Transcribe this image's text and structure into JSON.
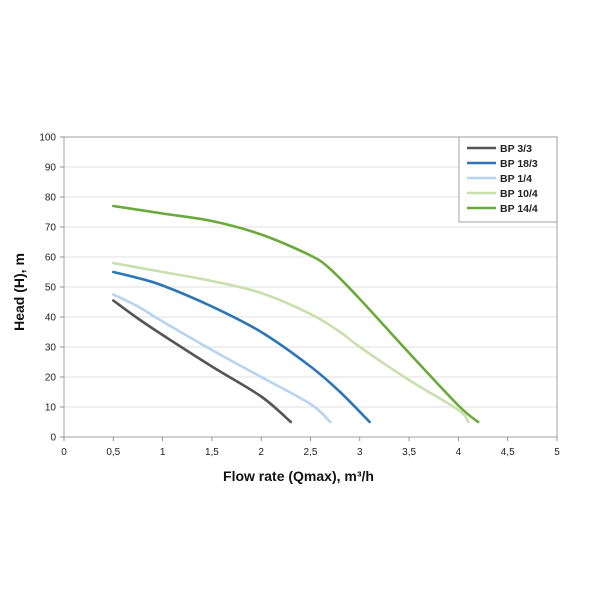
{
  "chart_data": {
    "type": "line",
    "xlabel": "Flow rate (Qmax), m³/h",
    "ylabel": "Head (H), m",
    "xlim": [
      0,
      5
    ],
    "ylim": [
      0,
      100
    ],
    "x_ticks": [
      "0",
      "0,5",
      "1",
      "1,5",
      "2",
      "2,5",
      "3",
      "3,5",
      "4",
      "4,5",
      "5"
    ],
    "y_ticks": [
      "0",
      "10",
      "20",
      "30",
      "40",
      "50",
      "60",
      "70",
      "80",
      "90",
      "100"
    ],
    "grid": "horizontal",
    "legend_position": "top-right",
    "series": [
      {
        "name": "BP 3/3",
        "color": "#555555",
        "points": [
          [
            0.5,
            45.5
          ],
          [
            0.75,
            39.5
          ],
          [
            1.0,
            34
          ],
          [
            1.5,
            23.5
          ],
          [
            2.0,
            13.5
          ],
          [
            2.3,
            5
          ]
        ]
      },
      {
        "name": "BP 18/3",
        "color": "#2e75b6",
        "points": [
          [
            0.5,
            55
          ],
          [
            0.75,
            53
          ],
          [
            1.0,
            50.5
          ],
          [
            1.5,
            43.5
          ],
          [
            2.0,
            35
          ],
          [
            2.5,
            23.5
          ],
          [
            2.8,
            15
          ],
          [
            3.1,
            5
          ]
        ]
      },
      {
        "name": "BP 1/4",
        "color": "#b7d4ee",
        "points": [
          [
            0.5,
            47.5
          ],
          [
            0.75,
            43.5
          ],
          [
            1.0,
            38.5
          ],
          [
            1.5,
            29
          ],
          [
            2.0,
            20
          ],
          [
            2.5,
            11
          ],
          [
            2.7,
            5
          ]
        ]
      },
      {
        "name": "BP 10/4",
        "color": "#c8e0ad",
        "points": [
          [
            0.5,
            58
          ],
          [
            1.0,
            55
          ],
          [
            1.5,
            52
          ],
          [
            2.0,
            48
          ],
          [
            2.5,
            41
          ],
          [
            2.8,
            35
          ],
          [
            3.0,
            30
          ],
          [
            3.5,
            19
          ],
          [
            4.0,
            9
          ],
          [
            4.1,
            5
          ]
        ]
      },
      {
        "name": "BP 14/4",
        "color": "#6aaa3c",
        "points": [
          [
            0.5,
            77
          ],
          [
            1.0,
            74.5
          ],
          [
            1.5,
            72
          ],
          [
            2.0,
            67.5
          ],
          [
            2.5,
            60.5
          ],
          [
            2.7,
            56
          ],
          [
            3.0,
            46
          ],
          [
            3.5,
            28
          ],
          [
            4.0,
            10.5
          ],
          [
            4.2,
            5
          ]
        ]
      }
    ]
  }
}
